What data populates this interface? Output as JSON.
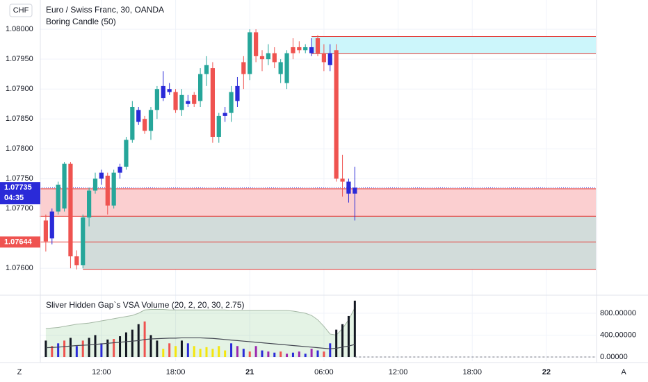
{
  "chart_data": {
    "type": "candlestick",
    "symbol": "CHF",
    "title": "Euro / Swiss Franc, 30, OANDA",
    "indicator": "Boring Candle (50)",
    "last_price": 1.07735,
    "countdown": "04:35",
    "marked_level": 1.07644,
    "ylim": [
      1.07555,
      1.08049
    ],
    "yticks": [
      {
        "value": 1.08,
        "label": "1.08000"
      },
      {
        "value": 1.0795,
        "label": "1.07950"
      },
      {
        "value": 1.079,
        "label": "1.07900"
      },
      {
        "value": 1.0785,
        "label": "1.07850"
      },
      {
        "value": 1.078,
        "label": "1.07800"
      },
      {
        "value": 1.0775,
        "label": "1.07750"
      },
      {
        "value": 1.077,
        "label": "1.07700"
      },
      {
        "value": 1.076,
        "label": "1.07600"
      }
    ],
    "xlim": [
      -1,
      89
    ],
    "xticks": [
      {
        "value": 9,
        "label": "12:00"
      },
      {
        "value": 21,
        "label": "18:00"
      },
      {
        "value": 33,
        "label": "21"
      },
      {
        "value": 45,
        "label": "06:00"
      },
      {
        "value": 57,
        "label": "12:00"
      },
      {
        "value": 69,
        "label": "18:00"
      },
      {
        "value": 81,
        "label": "22"
      }
    ],
    "zones": [
      {
        "top": 1.07988,
        "bottom": 1.07959,
        "start": 43,
        "color": "#ccf6fb"
      },
      {
        "top": 1.07733,
        "bottom": 1.07687,
        "start": -1,
        "color": "#fbcfd0"
      },
      {
        "top": 1.07687,
        "bottom": 1.07598,
        "start": 6,
        "color": "#d2dcda"
      }
    ],
    "open": [
      1.0768,
      1.0765,
      1.07695,
      1.077,
      1.07775,
      1.0762,
      1.07605,
      1.07685,
      1.0773,
      1.0775,
      1.07755,
      1.07705,
      1.0776,
      1.0777,
      1.07815,
      1.07865,
      1.0785,
      1.0783,
      1.07865,
      1.07905,
      1.079,
      1.07895,
      1.07865,
      1.0788,
      1.0789,
      1.0788,
      1.07925,
      1.07935,
      1.0782,
      1.07855,
      1.0786,
      1.07905,
      1.07945,
      1.07925,
      1.07995,
      1.07955,
      1.0795,
      1.0796,
      1.07925,
      1.0791,
      1.0796,
      1.0797,
      1.07965,
      1.0797,
      1.07985,
      1.0796,
      1.0796,
      1.07965,
      1.0775,
      1.07745,
      1.07725
    ],
    "high": [
      1.0769,
      1.077,
      1.07745,
      1.07778,
      1.07778,
      1.0763,
      1.0769,
      1.07735,
      1.0776,
      1.07765,
      1.0776,
      1.07765,
      1.07775,
      1.0782,
      1.0788,
      1.0787,
      1.07855,
      1.0787,
      1.07905,
      1.0793,
      1.0791,
      1.079,
      1.079,
      1.0789,
      1.07895,
      1.07935,
      1.07955,
      1.07945,
      1.0786,
      1.0787,
      1.07905,
      1.0792,
      1.07955,
      1.08,
      1.08,
      1.07965,
      1.07975,
      1.0797,
      1.0795,
      1.07965,
      1.07985,
      1.0798,
      1.07975,
      1.07985,
      1.0799,
      1.07975,
      1.07975,
      1.07975,
      1.0779,
      1.0775,
      1.0777
    ],
    "low": [
      1.07628,
      1.0764,
      1.0769,
      1.07695,
      1.076,
      1.07598,
      1.076,
      1.0767,
      1.07725,
      1.0774,
      1.0769,
      1.077,
      1.0775,
      1.07765,
      1.0781,
      1.0784,
      1.07825,
      1.07815,
      1.0785,
      1.0788,
      1.0789,
      1.0786,
      1.07855,
      1.0787,
      1.0787,
      1.0787,
      1.07905,
      1.0781,
      1.0781,
      1.07845,
      1.07845,
      1.0787,
      1.079,
      1.07915,
      1.07945,
      1.0793,
      1.0794,
      1.07935,
      1.0791,
      1.079,
      1.0795,
      1.0796,
      1.0796,
      1.07955,
      1.07955,
      1.0793,
      1.0793,
      1.07745,
      1.0772,
      1.0771,
      1.0768
    ],
    "close": [
      1.07645,
      1.07695,
      1.0774,
      1.07775,
      1.0762,
      1.07605,
      1.07685,
      1.0773,
      1.0775,
      1.0776,
      1.07705,
      1.0776,
      1.0777,
      1.07815,
      1.0787,
      1.07845,
      1.0783,
      1.07865,
      1.079,
      1.07885,
      1.07895,
      1.07865,
      1.0789,
      1.07875,
      1.07875,
      1.07925,
      1.0794,
      1.0782,
      1.07855,
      1.0786,
      1.07895,
      1.0788,
      1.07925,
      1.07995,
      1.07955,
      1.0795,
      1.0796,
      1.07945,
      1.07945,
      1.0796,
      1.0797,
      1.07965,
      1.0797,
      1.0796,
      1.0796,
      1.07945,
      1.0794,
      1.0775,
      1.07745,
      1.07725,
      1.07735
    ],
    "colors": [
      "#ef5350",
      "#2a2ad8",
      "#26a69a",
      "#26a69a",
      "#ef5350",
      "#ef5350",
      "#26a69a",
      "#26a69a",
      "#26a69a",
      "#2a2ad8",
      "#ef5350",
      "#26a69a",
      "#2a2ad8",
      "#26a69a",
      "#26a69a",
      "#2a2ad8",
      "#ef5350",
      "#26a69a",
      "#26a69a",
      "#2a2ad8",
      "#2a2ad8",
      "#ef5350",
      "#26a69a",
      "#2a2ad8",
      "#ef5350",
      "#26a69a",
      "#26a69a",
      "#ef5350",
      "#26a69a",
      "#2a2ad8",
      "#26a69a",
      "#2a2ad8",
      "#ef5350",
      "#26a69a",
      "#ef5350",
      "#ef5350",
      "#26a69a",
      "#ef5350",
      "#26a69a",
      "#26a69a",
      "#ef5350",
      "#ef5350",
      "#26a69a",
      "#2a2ad8",
      "#ef5350",
      "#ef5350",
      "#2a2ad8",
      "#ef5350",
      "#ef5350",
      "#2a2ad8",
      "#2a2ad8"
    ],
    "volume": {
      "title": "Sliver Hidden Gap`s VSA Volume (20, 2, 20, 30, 2.75)",
      "ylim": [
        -76,
        1092
      ],
      "yticks": [
        {
          "value": 800,
          "label": "800.00000"
        },
        {
          "value": 400,
          "label": "400.00000"
        },
        {
          "value": 0,
          "label": "0.00000"
        }
      ],
      "values": [
        300,
        200,
        250,
        300,
        350,
        200,
        300,
        350,
        400,
        250,
        320,
        330,
        380,
        450,
        500,
        600,
        650,
        400,
        300,
        150,
        250,
        200,
        300,
        250,
        200,
        150,
        180,
        150,
        200,
        120,
        250,
        200,
        150,
        100,
        200,
        120,
        100,
        80,
        100,
        60,
        80,
        100,
        60,
        150,
        120,
        100,
        250,
        500,
        600,
        750,
        1030
      ],
      "colors": [
        "#131722",
        "#ef5350",
        "#2a2ad8",
        "#ef5350",
        "#131722",
        "#2a2ad8",
        "#ef5350",
        "#131722",
        "#131722",
        "#2a2ad8",
        "#131722",
        "#ef5350",
        "#131722",
        "#131722",
        "#131722",
        "#131722",
        "#ef5350",
        "#131722",
        "#131722",
        "#f5e60c",
        "#ef5350",
        "#f5e60c",
        "#131722",
        "#2a2ad8",
        "#f5e60c",
        "#f5e60c",
        "#f5e60c",
        "#f5e60c",
        "#f5e60c",
        "#f5e60c",
        "#2a2ad8",
        "#9c27b0",
        "#2a2ad8",
        "#ef5350",
        "#9c27b0",
        "#2a2ad8",
        "#9c27b0",
        "#2a2ad8",
        "#ef5350",
        "#9c27b0",
        "#2a2ad8",
        "#9c27b0",
        "#2a2ad8",
        "#9c27b0",
        "#2a2ad8",
        "#ef5350",
        "#2a2ad8",
        "#131722",
        "#131722",
        "#131722",
        "#131722"
      ],
      "upper": [
        520,
        530,
        540,
        560,
        580,
        600,
        610,
        620,
        640,
        660,
        680,
        700,
        720,
        740,
        760,
        800,
        860,
        870,
        870,
        870,
        860,
        860,
        860,
        860,
        860,
        860,
        860,
        860,
        860,
        860,
        850,
        850,
        850,
        850,
        850,
        850,
        850,
        850,
        850,
        850,
        840,
        820,
        800,
        760,
        680,
        560,
        420,
        400,
        520,
        680,
        900
      ],
      "ma": [
        170,
        175,
        180,
        190,
        200,
        210,
        215,
        220,
        230,
        240,
        250,
        260,
        270,
        280,
        290,
        300,
        320,
        330,
        335,
        340,
        345,
        345,
        350,
        350,
        350,
        350,
        345,
        340,
        330,
        320,
        310,
        300,
        290,
        280,
        270,
        260,
        250,
        240,
        230,
        220,
        210,
        200,
        190,
        180,
        170,
        160,
        150,
        160,
        180,
        200,
        230
      ]
    },
    "left_corner": "Z",
    "right_corner": "A"
  }
}
